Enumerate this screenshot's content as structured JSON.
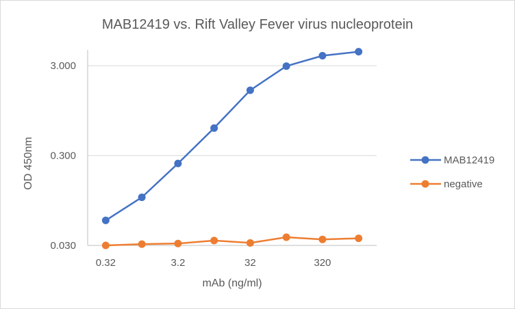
{
  "chart_data": {
    "type": "line",
    "title": "MAB12419 vs. Rift Valley Fever virus nucleoprotein",
    "xlabel": "mAb (ng/ml)",
    "ylabel": "OD 450nm",
    "x_tick_labels": [
      "0.32",
      "3.2",
      "32",
      "320"
    ],
    "x": [
      0.32,
      1.0,
      3.2,
      10,
      32,
      100,
      320,
      1000
    ],
    "y_scale": "log",
    "ylim": [
      0.03,
      4.5
    ],
    "y_ticks": [
      0.03,
      0.3,
      3.0
    ],
    "y_tick_labels": [
      "0.030",
      "0.300",
      "3.000"
    ],
    "grid": "horizontal",
    "legend_position": "right",
    "series": [
      {
        "name": "MAB12419",
        "color": "#4472c4",
        "values": [
          0.057,
          0.103,
          0.245,
          0.607,
          1.6,
          2.97,
          3.88,
          4.3
        ]
      },
      {
        "name": "negative",
        "color": "#ed7d31",
        "values": [
          0.03,
          0.031,
          0.0315,
          0.034,
          0.032,
          0.037,
          0.035,
          0.036
        ]
      }
    ]
  }
}
